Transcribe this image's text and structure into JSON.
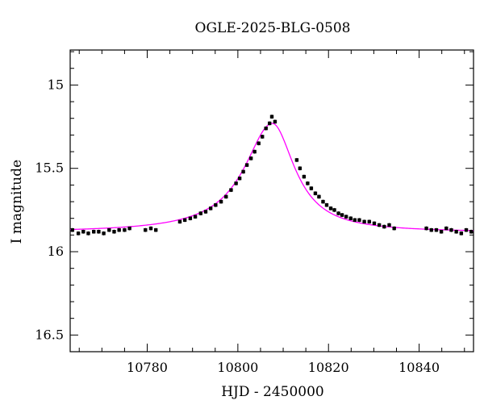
{
  "chart_data": {
    "type": "scatter",
    "title": "OGLE-2025-BLG-0508",
    "xlabel": "HJD - 2450000",
    "ylabel": "I magnitude",
    "xlim": [
      10763,
      10852
    ],
    "ylim": [
      16.6,
      14.79
    ],
    "y_inverted": true,
    "x_ticks": [
      10780,
      10800,
      10820,
      10840
    ],
    "x_tick_labels": [
      "10780",
      "10800",
      "10820",
      "10840"
    ],
    "y_ticks": [
      15,
      15.5,
      16,
      16.5
    ],
    "y_tick_labels": [
      "15",
      "15.5",
      "16",
      "16.5"
    ],
    "grid": false,
    "model": {
      "color": "#ff00ff",
      "baseline": 15.885,
      "peak_mag": 15.23,
      "t0": 10807.6
    },
    "series": [
      {
        "marker_color": "#000000",
        "x": [
          10763.5,
          10764.8,
          10765.9,
          10767.0,
          10768.2,
          10769.3,
          10770.4,
          10771.6,
          10772.7,
          10773.8,
          10775.0,
          10776.1,
          10779.6,
          10780.8,
          10781.9,
          10787.2,
          10788.3,
          10789.5,
          10790.6,
          10791.8,
          10792.9,
          10794.0,
          10795.1,
          10796.3,
          10797.4,
          10798.5,
          10799.6,
          10800.4,
          10801.2,
          10802.0,
          10802.9,
          10803.7,
          10804.6,
          10805.4,
          10806.2,
          10807.0,
          10807.5,
          10808.2,
          10813.0,
          10813.7,
          10814.6,
          10815.4,
          10816.2,
          10817.1,
          10817.9,
          10818.8,
          10819.6,
          10820.5,
          10821.3,
          10822.2,
          10823.0,
          10823.9,
          10824.9,
          10825.8,
          10826.8,
          10827.9,
          10829.0,
          10830.1,
          10831.2,
          10832.3,
          10833.4,
          10834.5,
          10841.6,
          10842.7,
          10843.8,
          10844.9,
          10846.0,
          10847.1,
          10848.2,
          10849.3,
          10850.4,
          10851.5
        ],
        "y": [
          15.87,
          15.89,
          15.88,
          15.89,
          15.88,
          15.88,
          15.89,
          15.87,
          15.88,
          15.87,
          15.87,
          15.86,
          15.87,
          15.86,
          15.87,
          15.82,
          15.81,
          15.8,
          15.79,
          15.77,
          15.76,
          15.74,
          15.72,
          15.7,
          15.67,
          15.63,
          15.59,
          15.56,
          15.52,
          15.48,
          15.44,
          15.4,
          15.35,
          15.31,
          15.26,
          15.23,
          15.19,
          15.22,
          15.45,
          15.5,
          15.55,
          15.59,
          15.62,
          15.65,
          15.67,
          15.7,
          15.72,
          15.74,
          15.75,
          15.77,
          15.78,
          15.79,
          15.8,
          15.81,
          15.81,
          15.82,
          15.82,
          15.83,
          15.84,
          15.85,
          15.84,
          15.86,
          15.86,
          15.87,
          15.87,
          15.88,
          15.86,
          15.87,
          15.88,
          15.89,
          15.87,
          15.88
        ],
        "error": 0.012
      }
    ]
  }
}
